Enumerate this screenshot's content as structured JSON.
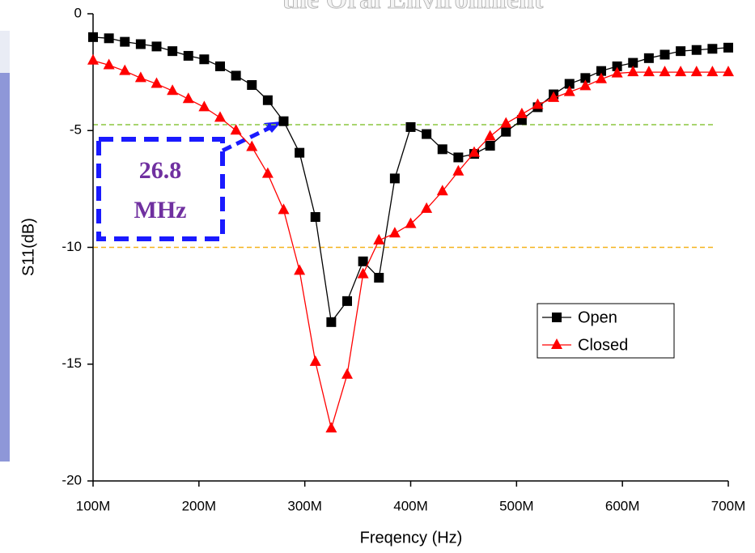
{
  "chart_data": {
    "type": "line",
    "title": "the Oral Environment",
    "x_label": "Freqency (Hz)",
    "y_label": "S11(dB)",
    "x": [
      100000000,
      115000000,
      130000000,
      145000000,
      160000000,
      175000000,
      190000000,
      205000000,
      220000000,
      235000000,
      250000000,
      265000000,
      280000000,
      295000000,
      310000000,
      325000000,
      340000000,
      355000000,
      370000000,
      385000000,
      400000000,
      415000000,
      430000000,
      445000000,
      460000000,
      475000000,
      490000000,
      505000000,
      520000000,
      535000000,
      550000000,
      565000000,
      580000000,
      595000000,
      610000000,
      625000000,
      640000000,
      655000000,
      670000000,
      685000000,
      700000000
    ],
    "series": [
      {
        "name": "Open",
        "color": "#000000",
        "marker": "square",
        "values": [
          -1.0,
          -1.05,
          -1.2,
          -1.3,
          -1.4,
          -1.6,
          -1.8,
          -1.95,
          -2.25,
          -2.65,
          -3.05,
          -3.7,
          -4.6,
          -5.95,
          -8.7,
          -13.2,
          -12.3,
          -10.6,
          -11.3,
          -7.05,
          -4.85,
          -5.15,
          -5.8,
          -6.15,
          -6.0,
          -5.65,
          -5.05,
          -4.55,
          -4.0,
          -3.45,
          -3.0,
          -2.75,
          -2.45,
          -2.25,
          -2.1,
          -1.9,
          -1.75,
          -1.6,
          -1.55,
          -1.5,
          -1.45
        ]
      },
      {
        "name": "Closed",
        "color": "#ff0000",
        "marker": "triangle",
        "values": [
          -2.0,
          -2.2,
          -2.45,
          -2.75,
          -3.0,
          -3.3,
          -3.65,
          -4.0,
          -4.45,
          -5.0,
          -5.7,
          -6.85,
          -8.4,
          -11.0,
          -14.9,
          -17.75,
          -15.45,
          -11.15,
          -9.7,
          -9.4,
          -9.0,
          -8.35,
          -7.6,
          -6.75,
          -5.95,
          -5.25,
          -4.7,
          -4.3,
          -3.9,
          -3.6,
          -3.35,
          -3.1,
          -2.8,
          -2.55,
          -2.5,
          -2.5,
          -2.5,
          -2.5,
          -2.5,
          -2.5,
          -2.5
        ]
      }
    ],
    "xlim": [
      100000000,
      700000000
    ],
    "xticks": [
      {
        "value": 100000000,
        "label": "100M"
      },
      {
        "value": 200000000,
        "label": "200M"
      },
      {
        "value": 300000000,
        "label": "300M"
      },
      {
        "value": 400000000,
        "label": "400M"
      },
      {
        "value": 500000000,
        "label": "500M"
      },
      {
        "value": 600000000,
        "label": "600M"
      },
      {
        "value": 700000000,
        "label": "700M"
      }
    ],
    "ylim": [
      -20,
      0
    ],
    "yticks": [
      0,
      -5,
      -10,
      -15,
      -20
    ],
    "hlines": [
      {
        "value": -4.75,
        "color": "#8cc63f"
      },
      {
        "value": -10,
        "color": "#f5b21b"
      }
    ],
    "annotations": [
      "26.8",
      "MHz"
    ],
    "legend": "lower-right"
  }
}
